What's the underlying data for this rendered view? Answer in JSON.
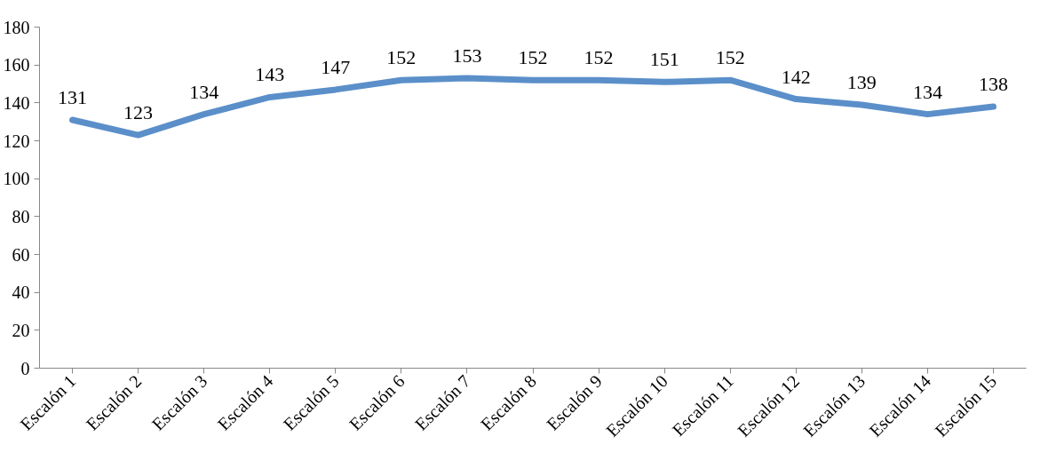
{
  "chart_data": {
    "type": "line",
    "categories": [
      "Escalón 1",
      "Escalón 2",
      "Escalón 3",
      "Escalón 4",
      "Escalón 5",
      "Escalón 6",
      "Escalón 7",
      "Escalón 8",
      "Escalón 9",
      "Escalón 10",
      "Escalón 11",
      "Escalón 12",
      "Escalón 13",
      "Escalón 14",
      "Escalón 15"
    ],
    "series": [
      {
        "color": "#5b8fc9",
        "values": [
          131,
          123,
          134,
          143,
          147,
          152,
          153,
          152,
          152,
          151,
          152,
          142,
          139,
          134,
          138
        ]
      }
    ],
    "ylim": [
      0,
      180
    ],
    "yticks": [
      0,
      20,
      40,
      60,
      80,
      100,
      120,
      140,
      160,
      180
    ],
    "data_labels": true,
    "marker": "none",
    "line_style": "solid"
  }
}
